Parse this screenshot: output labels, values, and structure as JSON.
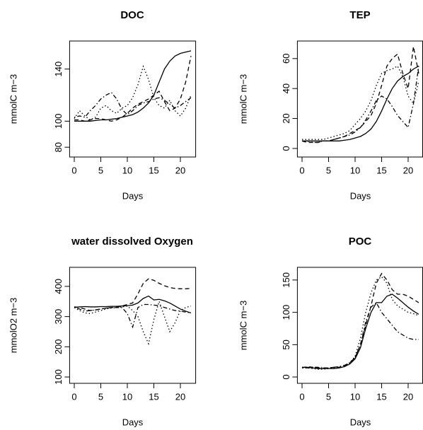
{
  "chart_data": [
    {
      "type": "line",
      "title": "DOC",
      "xlabel": "Days",
      "ylabel": "mmolC m−3",
      "x": [
        0,
        1,
        2,
        3,
        4,
        5,
        6,
        7,
        8,
        9,
        10,
        11,
        12,
        13,
        14,
        15,
        16,
        17,
        18,
        19,
        20,
        21,
        22
      ],
      "xlim": [
        -0.88,
        22.88
      ],
      "ylim": [
        72.5,
        161.5
      ],
      "xticks": [
        0,
        5,
        10,
        15,
        20
      ],
      "yticks": [
        80,
        100,
        140
      ],
      "series": [
        {
          "color": "#000000",
          "dash": "solid",
          "values": [
            100,
            100,
            100,
            100,
            100.5,
            101,
            101,
            101.5,
            102,
            103,
            104,
            105,
            107,
            110,
            114,
            120,
            130,
            140,
            146,
            150,
            152,
            153,
            154
          ]
        },
        {
          "color": "#000000",
          "dash": "dashed",
          "values": [
            101,
            101,
            100,
            101,
            102,
            102,
            101,
            100,
            101,
            103,
            106,
            110,
            113,
            115,
            117,
            120,
            123,
            115,
            108,
            110,
            117,
            130,
            150
          ]
        },
        {
          "color": "#000000",
          "dash": "dotted",
          "values": [
            102,
            108,
            104,
            101,
            103,
            110,
            112,
            108,
            106,
            110,
            112,
            118,
            128,
            142,
            132,
            118,
            112,
            110,
            116,
            108,
            104,
            110,
            120
          ]
        },
        {
          "color": "#000000",
          "dash": "dotdash",
          "values": [
            103,
            104,
            103,
            108,
            112,
            117,
            120,
            122,
            117,
            109,
            105,
            108,
            112,
            114,
            115,
            117,
            118,
            116,
            113,
            110,
            112,
            115,
            118
          ]
        }
      ]
    },
    {
      "type": "line",
      "title": "TEP",
      "xlabel": "Days",
      "ylabel": "mmolC m−3",
      "x": [
        0,
        1,
        2,
        3,
        4,
        5,
        6,
        7,
        8,
        9,
        10,
        11,
        12,
        13,
        14,
        15,
        16,
        17,
        18,
        19,
        20,
        21,
        22
      ],
      "xlim": [
        -0.88,
        22.88
      ],
      "ylim": [
        -5.7,
        71.7
      ],
      "xticks": [
        0,
        5,
        10,
        15,
        20
      ],
      "yticks": [
        0,
        20,
        40,
        60
      ],
      "series": [
        {
          "color": "#000000",
          "dash": "solid",
          "values": [
            5,
            5,
            5,
            5,
            5,
            5,
            5,
            5,
            5.5,
            6,
            7,
            8,
            10,
            13,
            18,
            25,
            33,
            40,
            45,
            48,
            50,
            53,
            55
          ]
        },
        {
          "color": "#000000",
          "dash": "dashed",
          "values": [
            5,
            4,
            4,
            4,
            5,
            5,
            6,
            7,
            8,
            10,
            12,
            14,
            18,
            22,
            30,
            42,
            55,
            60,
            63,
            50,
            40,
            68,
            50
          ]
        },
        {
          "color": "#000000",
          "dash": "dotted",
          "values": [
            6,
            6,
            6,
            6,
            6,
            7,
            8,
            9,
            10,
            12,
            16,
            20,
            25,
            32,
            42,
            50,
            52,
            53,
            55,
            48,
            35,
            30,
            45
          ]
        },
        {
          "color": "#000000",
          "dash": "dotdash",
          "values": [
            5,
            5,
            4,
            4,
            5,
            5,
            6,
            7,
            8,
            9,
            11,
            14,
            19,
            25,
            32,
            35,
            33,
            28,
            22,
            18,
            14,
            30,
            55
          ]
        }
      ]
    },
    {
      "type": "line",
      "title": "water dissolved Oxygen",
      "xlabel": "Days",
      "ylabel": "mmolO2 m−3",
      "x": [
        0,
        1,
        2,
        3,
        4,
        5,
        6,
        7,
        8,
        9,
        10,
        11,
        12,
        13,
        14,
        15,
        16,
        17,
        18,
        19,
        20,
        21,
        22
      ],
      "xlim": [
        -0.88,
        22.88
      ],
      "ylim": [
        79,
        463
      ],
      "xticks": [
        0,
        5,
        10,
        15,
        20
      ],
      "yticks": [
        100,
        200,
        300,
        400
      ],
      "series": [
        {
          "color": "#000000",
          "dash": "solid",
          "values": [
            330,
            332,
            333,
            332,
            332,
            333,
            333,
            334,
            334,
            335,
            336,
            338,
            345,
            360,
            368,
            355,
            357,
            352,
            345,
            335,
            325,
            318,
            312
          ]
        },
        {
          "color": "#000000",
          "dash": "dashed",
          "values": [
            332,
            330,
            325,
            320,
            322,
            325,
            328,
            330,
            332,
            335,
            340,
            345,
            375,
            410,
            425,
            420,
            410,
            402,
            396,
            393,
            392,
            392,
            393
          ]
        },
        {
          "color": "#000000",
          "dash": "dotted",
          "values": [
            330,
            320,
            312,
            310,
            315,
            320,
            325,
            328,
            330,
            332,
            335,
            320,
            300,
            250,
            210,
            290,
            350,
            300,
            250,
            280,
            320,
            330,
            335
          ]
        },
        {
          "color": "#000000",
          "dash": "dotdash",
          "values": [
            330,
            325,
            318,
            320,
            322,
            325,
            328,
            330,
            330,
            330,
            310,
            265,
            330,
            340,
            340,
            338,
            336,
            330,
            325,
            320,
            318,
            315,
            312
          ]
        }
      ]
    },
    {
      "type": "line",
      "title": "POC",
      "xlabel": "Days",
      "ylabel": "mmolC m−3",
      "x": [
        0,
        1,
        2,
        3,
        4,
        5,
        6,
        7,
        8,
        9,
        10,
        11,
        12,
        13,
        14,
        15,
        16,
        17,
        18,
        19,
        20,
        21,
        22
      ],
      "xlim": [
        -0.88,
        22.88
      ],
      "ylim": [
        -9.8,
        169.6
      ],
      "xticks": [
        0,
        5,
        10,
        15,
        20
      ],
      "yticks": [
        0,
        50,
        100,
        150
      ],
      "series": [
        {
          "color": "#000000",
          "dash": "solid",
          "values": [
            15,
            15,
            14,
            13,
            13,
            13,
            13,
            14,
            16,
            20,
            28,
            45,
            75,
            100,
            115,
            115,
            125,
            128,
            122,
            115,
            108,
            102,
            97
          ]
        },
        {
          "color": "#000000",
          "dash": "dashed",
          "values": [
            14,
            16,
            15,
            14,
            14,
            14,
            15,
            15,
            17,
            22,
            30,
            50,
            80,
            110,
            145,
            160,
            150,
            135,
            128,
            128,
            125,
            120,
            115
          ]
        },
        {
          "color": "#000000",
          "dash": "dotted",
          "values": [
            15,
            14,
            13,
            12,
            12,
            13,
            14,
            16,
            18,
            22,
            32,
            60,
            100,
            130,
            150,
            155,
            145,
            120,
            110,
            105,
            100,
            98,
            95
          ]
        },
        {
          "color": "#000000",
          "dash": "dotdash",
          "values": [
            14,
            14,
            15,
            15,
            14,
            14,
            15,
            16,
            18,
            22,
            30,
            50,
            85,
            108,
            115,
            100,
            90,
            80,
            70,
            65,
            60,
            58,
            58
          ]
        }
      ]
    }
  ]
}
